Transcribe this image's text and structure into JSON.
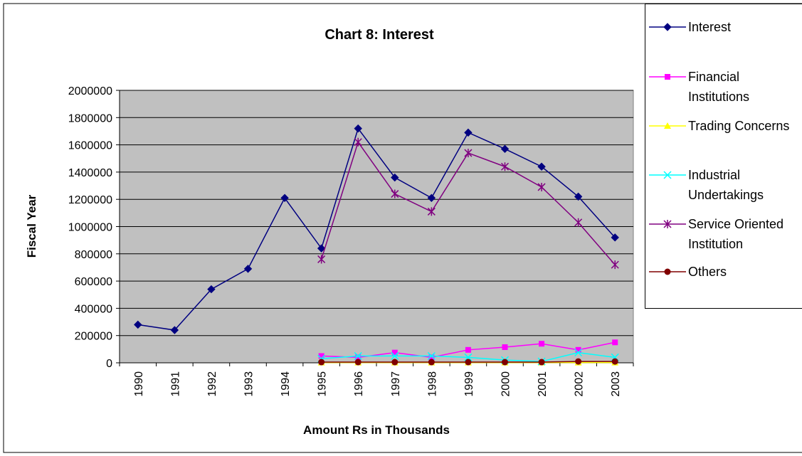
{
  "chart_data": {
    "type": "line",
    "title": "Chart 8: Interest",
    "x_label": "Amount Rs in Thousands",
    "y_label": "Fiscal Year",
    "categories": [
      "1990",
      "1991",
      "1992",
      "1993",
      "1994",
      "1995",
      "1996",
      "1997",
      "1998",
      "1999",
      "2000",
      "2001",
      "2002",
      "2003"
    ],
    "series": [
      {
        "name": "Interest",
        "color": "#000080",
        "marker": "diamond",
        "values": [
          280000,
          240000,
          540000,
          690000,
          1210000,
          840000,
          1720000,
          1360000,
          1210000,
          1690000,
          1570000,
          1440000,
          1220000,
          920000
        ]
      },
      {
        "name": "Financial Institutions",
        "color": "#ff00ff",
        "marker": "square",
        "values": [
          null,
          null,
          null,
          null,
          null,
          50000,
          40000,
          75000,
          40000,
          95000,
          115000,
          140000,
          95000,
          150000
        ]
      },
      {
        "name": "Trading Concerns",
        "color": "#ffff00",
        "marker": "triangle",
        "values": [
          null,
          null,
          null,
          null,
          null,
          2000,
          2000,
          2000,
          2000,
          2000,
          2000,
          2000,
          2000,
          2000
        ]
      },
      {
        "name": "Industrial Undertakings",
        "color": "#00ffff",
        "marker": "x",
        "values": [
          null,
          null,
          null,
          null,
          null,
          30000,
          50000,
          50000,
          50000,
          40000,
          20000,
          10000,
          75000,
          40000
        ]
      },
      {
        "name": "Service Oriented Institution",
        "color": "#800080",
        "marker": "star",
        "values": [
          null,
          null,
          null,
          null,
          null,
          760000,
          1620000,
          1240000,
          1110000,
          1540000,
          1440000,
          1290000,
          1030000,
          720000
        ]
      },
      {
        "name": "Others",
        "color": "#800000",
        "marker": "circle",
        "values": [
          null,
          null,
          null,
          null,
          null,
          5000,
          5000,
          5000,
          5000,
          5000,
          5000,
          5000,
          10000,
          10000
        ]
      }
    ],
    "ylim": [
      0,
      2000000
    ],
    "yticks": [
      0,
      200000,
      400000,
      600000,
      800000,
      1000000,
      1200000,
      1400000,
      1600000,
      1800000,
      2000000
    ],
    "grid": true,
    "legend": "right"
  }
}
